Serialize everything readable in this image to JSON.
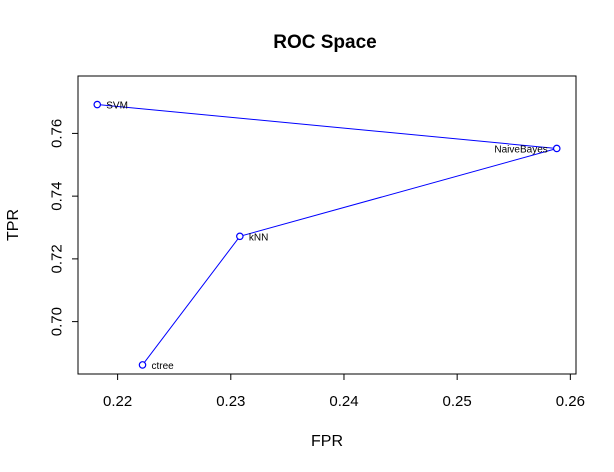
{
  "chart_data": {
    "type": "scatter",
    "title": "ROC Space",
    "xlabel": "FPR",
    "ylabel": "TPR",
    "xlim": [
      0.2165,
      0.2605
    ],
    "ylim": [
      0.6833,
      0.7783
    ],
    "xticks": [
      0.22,
      0.23,
      0.24,
      0.25,
      0.26
    ],
    "xtick_labels": [
      "0.22",
      "0.23",
      "0.24",
      "0.25",
      "0.26"
    ],
    "yticks": [
      0.7,
      0.72,
      0.74,
      0.76
    ],
    "ytick_labels": [
      "0.70",
      "0.72",
      "0.74",
      "0.76"
    ],
    "grid": false,
    "connected": true,
    "line_color": "#0000ff",
    "point_color": "#0000ff",
    "points": [
      {
        "label": "ctree",
        "x": 0.2222,
        "y": 0.6862
      },
      {
        "label": "kNN",
        "x": 0.2308,
        "y": 0.7272
      },
      {
        "label": "NaiveBayes",
        "x": 0.2588,
        "y": 0.7552
      },
      {
        "label": "SVM",
        "x": 0.2182,
        "y": 0.7692
      }
    ]
  }
}
